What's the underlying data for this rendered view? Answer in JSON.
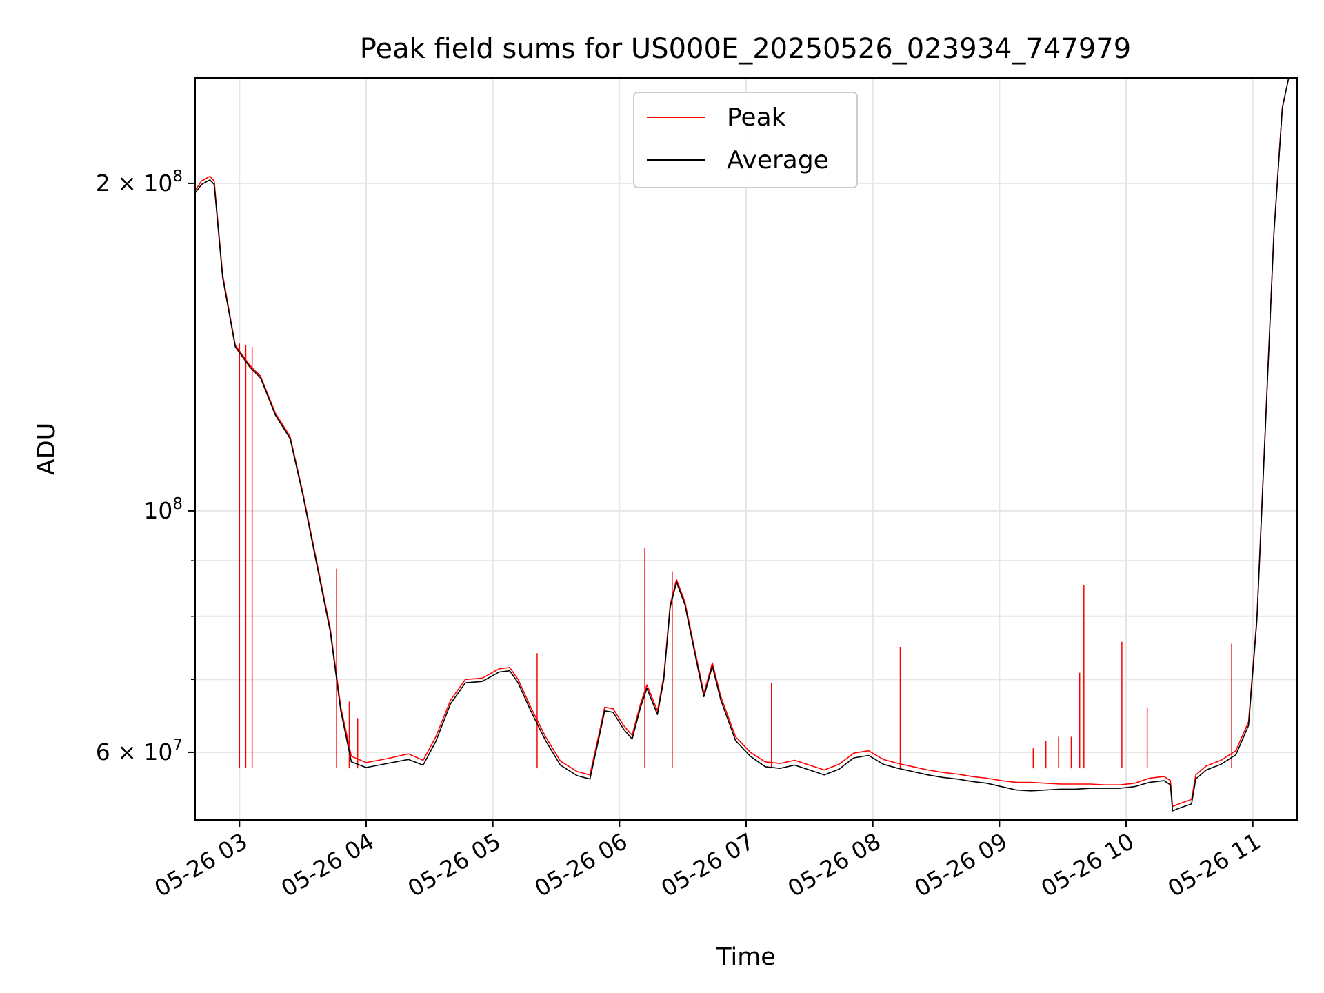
{
  "chart_data": {
    "type": "line",
    "title": "Peak field sums for US000E_20250526_023934_747979",
    "xlabel": "Time",
    "ylabel": "ADU",
    "y_scale": "log",
    "ylim": [
      52000000,
      250000000
    ],
    "xlim": [
      "2025-05-26 02:39",
      "2025-05-26 11:21"
    ],
    "grid": true,
    "legend_position": "upper center",
    "x_ticks": [
      {
        "value": "2025-05-26 03:00",
        "label": "05-26 03"
      },
      {
        "value": "2025-05-26 04:00",
        "label": "05-26 04"
      },
      {
        "value": "2025-05-26 05:00",
        "label": "05-26 05"
      },
      {
        "value": "2025-05-26 06:00",
        "label": "05-26 06"
      },
      {
        "value": "2025-05-26 07:00",
        "label": "05-26 07"
      },
      {
        "value": "2025-05-26 08:00",
        "label": "05-26 08"
      },
      {
        "value": "2025-05-26 09:00",
        "label": "05-26 09"
      },
      {
        "value": "2025-05-26 10:00",
        "label": "05-26 10"
      },
      {
        "value": "2025-05-26 11:00",
        "label": "05-26 11"
      }
    ],
    "y_ticks": [
      {
        "value": 200000000,
        "label": "2 × 10^8",
        "mantissa": "2 × 10",
        "exp": "8"
      },
      {
        "value": 100000000,
        "label": "10^8",
        "mantissa": "10",
        "exp": "8"
      },
      {
        "value": 60000000,
        "label": "6 × 10^7",
        "mantissa": "6 × 10",
        "exp": "7"
      }
    ],
    "y_minor_ticks": [
      70000000,
      80000000,
      90000000
    ],
    "series": [
      {
        "name": "Peak",
        "color": "#ff0000",
        "points": [
          [
            "2025-05-26 02:39",
            197000000
          ],
          [
            "2025-05-26 02:42",
            201000000
          ],
          [
            "2025-05-26 02:46",
            203000000
          ],
          [
            "2025-05-26 02:48",
            201000000
          ],
          [
            "2025-05-26 02:52",
            165000000
          ],
          [
            "2025-05-26 02:58",
            142000000
          ],
          [
            "2025-05-26 03:05",
            136000000
          ],
          [
            "2025-05-26 03:10",
            133000000
          ],
          [
            "2025-05-26 03:17",
            123000000
          ],
          [
            "2025-05-26 03:24",
            117000000
          ],
          [
            "2025-05-26 03:30",
            104000000
          ],
          [
            "2025-05-26 03:36",
            91000000
          ],
          [
            "2025-05-26 03:43",
            78000000
          ],
          [
            "2025-05-26 03:48",
            66000000
          ],
          [
            "2025-05-26 03:53",
            59500000
          ],
          [
            "2025-05-26 04:00",
            58700000
          ],
          [
            "2025-05-26 04:10",
            59200000
          ],
          [
            "2025-05-26 04:20",
            59800000
          ],
          [
            "2025-05-26 04:27",
            59000000
          ],
          [
            "2025-05-26 04:33",
            62000000
          ],
          [
            "2025-05-26 04:40",
            67000000
          ],
          [
            "2025-05-26 04:47",
            70000000
          ],
          [
            "2025-05-26 04:55",
            70200000
          ],
          [
            "2025-05-26 05:03",
            71600000
          ],
          [
            "2025-05-26 05:08",
            71800000
          ],
          [
            "2025-05-26 05:12",
            70000000
          ],
          [
            "2025-05-26 05:18",
            66000000
          ],
          [
            "2025-05-26 05:25",
            62000000
          ],
          [
            "2025-05-26 05:32",
            58900000
          ],
          [
            "2025-05-26 05:40",
            57600000
          ],
          [
            "2025-05-26 05:46",
            57200000
          ],
          [
            "2025-05-26 05:50",
            62000000
          ],
          [
            "2025-05-26 05:53",
            66000000
          ],
          [
            "2025-05-26 05:57",
            65800000
          ],
          [
            "2025-05-26 06:02",
            63500000
          ],
          [
            "2025-05-26 06:06",
            62200000
          ],
          [
            "2025-05-26 06:10",
            66500000
          ],
          [
            "2025-05-26 06:13",
            69200000
          ],
          [
            "2025-05-26 06:18",
            65500000
          ],
          [
            "2025-05-26 06:21",
            70500000
          ],
          [
            "2025-05-26 06:24",
            82000000
          ],
          [
            "2025-05-26 06:27",
            86500000
          ],
          [
            "2025-05-26 06:31",
            82500000
          ],
          [
            "2025-05-26 06:36",
            74000000
          ],
          [
            "2025-05-26 06:40",
            68000000
          ],
          [
            "2025-05-26 06:44",
            72500000
          ],
          [
            "2025-05-26 06:48",
            67500000
          ],
          [
            "2025-05-26 06:55",
            62000000
          ],
          [
            "2025-05-26 07:02",
            60000000
          ],
          [
            "2025-05-26 07:09",
            58800000
          ],
          [
            "2025-05-26 07:16",
            58600000
          ],
          [
            "2025-05-26 07:23",
            59000000
          ],
          [
            "2025-05-26 07:30",
            58400000
          ],
          [
            "2025-05-26 07:37",
            57800000
          ],
          [
            "2025-05-26 07:44",
            58500000
          ],
          [
            "2025-05-26 07:51",
            59900000
          ],
          [
            "2025-05-26 07:58",
            60200000
          ],
          [
            "2025-05-26 08:05",
            59100000
          ],
          [
            "2025-05-26 08:12",
            58600000
          ],
          [
            "2025-05-26 08:19",
            58200000
          ],
          [
            "2025-05-26 08:26",
            57800000
          ],
          [
            "2025-05-26 08:33",
            57500000
          ],
          [
            "2025-05-26 08:40",
            57300000
          ],
          [
            "2025-05-26 08:47",
            57000000
          ],
          [
            "2025-05-26 08:54",
            56800000
          ],
          [
            "2025-05-26 09:01",
            56500000
          ],
          [
            "2025-05-26 09:08",
            56300000
          ],
          [
            "2025-05-26 09:15",
            56300000
          ],
          [
            "2025-05-26 09:22",
            56200000
          ],
          [
            "2025-05-26 09:29",
            56100000
          ],
          [
            "2025-05-26 09:36",
            56100000
          ],
          [
            "2025-05-26 09:43",
            56100000
          ],
          [
            "2025-05-26 09:50",
            56000000
          ],
          [
            "2025-05-26 09:57",
            56000000
          ],
          [
            "2025-05-26 10:04",
            56200000
          ],
          [
            "2025-05-26 10:11",
            56800000
          ],
          [
            "2025-05-26 10:18",
            57000000
          ],
          [
            "2025-05-26 10:21",
            56500000
          ],
          [
            "2025-05-26 10:22",
            53500000
          ],
          [
            "2025-05-26 10:25",
            53800000
          ],
          [
            "2025-05-26 10:31",
            54300000
          ],
          [
            "2025-05-26 10:33",
            57200000
          ],
          [
            "2025-05-26 10:38",
            58300000
          ],
          [
            "2025-05-26 10:45",
            59000000
          ],
          [
            "2025-05-26 10:52",
            60200000
          ],
          [
            "2025-05-26 10:58",
            64000000
          ],
          [
            "2025-05-26 11:02",
            80000000
          ],
          [
            "2025-05-26 11:06",
            120000000
          ],
          [
            "2025-05-26 11:10",
            180000000
          ],
          [
            "2025-05-26 11:14",
            235000000
          ],
          [
            "2025-05-26 11:17",
            250000000
          ]
        ],
        "spikes": [
          [
            "2025-05-26 03:00",
            142500000
          ],
          [
            "2025-05-26 03:03",
            142000000
          ],
          [
            "2025-05-26 03:06",
            141500000
          ],
          [
            "2025-05-26 03:46",
            88500000
          ],
          [
            "2025-05-26 03:52",
            66800000
          ],
          [
            "2025-05-26 03:56",
            64500000
          ],
          [
            "2025-05-26 05:21",
            74000000
          ],
          [
            "2025-05-26 06:12",
            92500000
          ],
          [
            "2025-05-26 06:25",
            88000000
          ],
          [
            "2025-05-26 07:12",
            69500000
          ],
          [
            "2025-05-26 08:13",
            75000000
          ],
          [
            "2025-05-26 09:16",
            60500000
          ],
          [
            "2025-05-26 09:22",
            61500000
          ],
          [
            "2025-05-26 09:28",
            62000000
          ],
          [
            "2025-05-26 09:34",
            62000000
          ],
          [
            "2025-05-26 09:38",
            71000000
          ],
          [
            "2025-05-26 09:40",
            85500000
          ],
          [
            "2025-05-26 09:58",
            75800000
          ],
          [
            "2025-05-26 10:10",
            66000000
          ],
          [
            "2025-05-26 10:50",
            75500000
          ]
        ]
      },
      {
        "name": "Average",
        "color": "#000000",
        "points": [
          [
            "2025-05-26 02:39",
            196000000
          ],
          [
            "2025-05-26 02:42",
            199500000
          ],
          [
            "2025-05-26 02:46",
            201500000
          ],
          [
            "2025-05-26 02:48",
            199500000
          ],
          [
            "2025-05-26 02:52",
            164000000
          ],
          [
            "2025-05-26 02:58",
            141500000
          ],
          [
            "2025-05-26 03:05",
            135500000
          ],
          [
            "2025-05-26 03:10",
            132500000
          ],
          [
            "2025-05-26 03:17",
            122500000
          ],
          [
            "2025-05-26 03:24",
            116500000
          ],
          [
            "2025-05-26 03:30",
            103500000
          ],
          [
            "2025-05-26 03:36",
            90500000
          ],
          [
            "2025-05-26 03:43",
            77500000
          ],
          [
            "2025-05-26 03:48",
            65500000
          ],
          [
            "2025-05-26 03:53",
            58800000
          ],
          [
            "2025-05-26 04:00",
            58100000
          ],
          [
            "2025-05-26 04:10",
            58600000
          ],
          [
            "2025-05-26 04:20",
            59100000
          ],
          [
            "2025-05-26 04:27",
            58400000
          ],
          [
            "2025-05-26 04:33",
            61400000
          ],
          [
            "2025-05-26 04:40",
            66500000
          ],
          [
            "2025-05-26 04:47",
            69500000
          ],
          [
            "2025-05-26 04:55",
            69700000
          ],
          [
            "2025-05-26 05:03",
            71100000
          ],
          [
            "2025-05-26 05:08",
            71300000
          ],
          [
            "2025-05-26 05:12",
            69500000
          ],
          [
            "2025-05-26 05:18",
            65500000
          ],
          [
            "2025-05-26 05:25",
            61500000
          ],
          [
            "2025-05-26 05:32",
            58400000
          ],
          [
            "2025-05-26 05:40",
            57100000
          ],
          [
            "2025-05-26 05:46",
            56700000
          ],
          [
            "2025-05-26 05:50",
            61500000
          ],
          [
            "2025-05-26 05:53",
            65500000
          ],
          [
            "2025-05-26 05:57",
            65300000
          ],
          [
            "2025-05-26 06:02",
            63000000
          ],
          [
            "2025-05-26 06:06",
            61700000
          ],
          [
            "2025-05-26 06:10",
            66000000
          ],
          [
            "2025-05-26 06:13",
            68700000
          ],
          [
            "2025-05-26 06:18",
            65000000
          ],
          [
            "2025-05-26 06:21",
            70000000
          ],
          [
            "2025-05-26 06:24",
            81500000
          ],
          [
            "2025-05-26 06:27",
            86000000
          ],
          [
            "2025-05-26 06:31",
            82000000
          ],
          [
            "2025-05-26 06:36",
            73500000
          ],
          [
            "2025-05-26 06:40",
            67500000
          ],
          [
            "2025-05-26 06:44",
            72000000
          ],
          [
            "2025-05-26 06:48",
            67000000
          ],
          [
            "2025-05-26 06:55",
            61500000
          ],
          [
            "2025-05-26 07:02",
            59500000
          ],
          [
            "2025-05-26 07:09",
            58200000
          ],
          [
            "2025-05-26 07:16",
            58000000
          ],
          [
            "2025-05-26 07:23",
            58400000
          ],
          [
            "2025-05-26 07:30",
            57800000
          ],
          [
            "2025-05-26 07:37",
            57200000
          ],
          [
            "2025-05-26 07:44",
            57900000
          ],
          [
            "2025-05-26 07:51",
            59300000
          ],
          [
            "2025-05-26 07:58",
            59600000
          ],
          [
            "2025-05-26 08:05",
            58500000
          ],
          [
            "2025-05-26 08:12",
            58000000
          ],
          [
            "2025-05-26 08:19",
            57600000
          ],
          [
            "2025-05-26 08:26",
            57200000
          ],
          [
            "2025-05-26 08:33",
            56900000
          ],
          [
            "2025-05-26 08:40",
            56700000
          ],
          [
            "2025-05-26 08:47",
            56400000
          ],
          [
            "2025-05-26 08:54",
            56200000
          ],
          [
            "2025-05-26 09:01",
            55800000
          ],
          [
            "2025-05-26 09:08",
            55400000
          ],
          [
            "2025-05-26 09:15",
            55300000
          ],
          [
            "2025-05-26 09:22",
            55400000
          ],
          [
            "2025-05-26 09:29",
            55500000
          ],
          [
            "2025-05-26 09:36",
            55500000
          ],
          [
            "2025-05-26 09:43",
            55600000
          ],
          [
            "2025-05-26 09:50",
            55600000
          ],
          [
            "2025-05-26 09:57",
            55600000
          ],
          [
            "2025-05-26 10:04",
            55800000
          ],
          [
            "2025-05-26 10:11",
            56300000
          ],
          [
            "2025-05-26 10:18",
            56500000
          ],
          [
            "2025-05-26 10:21",
            56000000
          ],
          [
            "2025-05-26 10:22",
            53000000
          ],
          [
            "2025-05-26 10:25",
            53300000
          ],
          [
            "2025-05-26 10:31",
            53800000
          ],
          [
            "2025-05-26 10:33",
            56700000
          ],
          [
            "2025-05-26 10:38",
            57800000
          ],
          [
            "2025-05-26 10:45",
            58500000
          ],
          [
            "2025-05-26 10:52",
            59700000
          ],
          [
            "2025-05-26 10:58",
            63500000
          ],
          [
            "2025-05-26 11:02",
            79500000
          ],
          [
            "2025-05-26 11:06",
            119500000
          ],
          [
            "2025-05-26 11:10",
            179500000
          ],
          [
            "2025-05-26 11:14",
            234500000
          ],
          [
            "2025-05-26 11:17",
            250000000
          ]
        ]
      }
    ]
  }
}
